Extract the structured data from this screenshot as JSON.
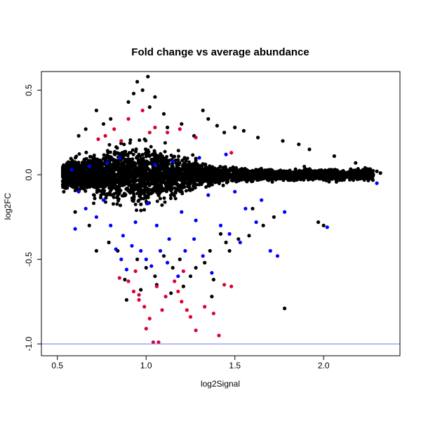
{
  "chart_data": {
    "type": "scatter",
    "title": "Fold change vs average abundance",
    "xlabel": "log2Signal",
    "ylabel": "log2FC",
    "xlim": [
      0.41,
      2.43
    ],
    "ylim": [
      -1.07,
      0.61
    ],
    "x_ticks": [
      "0.5",
      "1.0",
      "1.5",
      "2.0"
    ],
    "x_tick_values": [
      0.5,
      1.0,
      1.5,
      2.0
    ],
    "y_ticks": [
      "-1.0",
      "-0.5",
      "0.0",
      "0.5"
    ],
    "y_tick_values": [
      -1.0,
      -0.5,
      0.0,
      0.5
    ],
    "grid": false,
    "legend": "none",
    "reference_line": {
      "y": -1.0,
      "color": "#6b73ff"
    },
    "colors": {
      "background_points": "#000000",
      "significant_minor": "#0000ff",
      "significant_major": "#dd0033"
    },
    "series": [
      {
        "color": "#000000",
        "points": [
          [
            0.95,
            0.55
          ],
          [
            0.98,
            0.5
          ],
          [
            1.01,
            0.58
          ],
          [
            0.93,
            0.48
          ],
          [
            1.05,
            0.46
          ],
          [
            0.9,
            0.43
          ],
          [
            1.02,
            0.4
          ],
          [
            1.1,
            0.36
          ],
          [
            0.72,
            0.38
          ],
          [
            0.8,
            0.33
          ],
          [
            1.32,
            0.38
          ],
          [
            1.35,
            0.33
          ],
          [
            1.2,
            0.3
          ],
          [
            1.4,
            0.29
          ],
          [
            1.5,
            0.28
          ],
          [
            1.55,
            0.26
          ],
          [
            0.62,
            0.23
          ],
          [
            0.66,
            0.27
          ],
          [
            1.27,
            0.23
          ],
          [
            1.44,
            0.25
          ],
          [
            1.63,
            0.22
          ],
          [
            1.77,
            0.2
          ],
          [
            1.86,
            0.18
          ],
          [
            1.92,
            0.15
          ],
          [
            2.06,
            0.11
          ],
          [
            2.18,
            0.07
          ],
          [
            2.3,
            0.02
          ],
          [
            2.32,
            0.01
          ],
          [
            1.12,
            0.28
          ],
          [
            0.76,
            0.3
          ],
          [
            1.6,
            -0.2
          ],
          [
            1.72,
            -0.25
          ],
          [
            1.66,
            -0.3
          ],
          [
            2.0,
            -0.3
          ],
          [
            1.97,
            -0.28
          ],
          [
            1.58,
            -0.36
          ],
          [
            1.45,
            -0.4
          ],
          [
            1.36,
            -0.45
          ],
          [
            1.28,
            -0.55
          ],
          [
            1.25,
            -0.6
          ],
          [
            1.21,
            -0.66
          ],
          [
            1.15,
            -0.55
          ],
          [
            1.05,
            -0.6
          ],
          [
            1.0,
            -0.55
          ],
          [
            0.97,
            -0.68
          ],
          [
            0.89,
            -0.74
          ],
          [
            0.88,
            -0.62
          ],
          [
            0.84,
            -0.45
          ],
          [
            0.79,
            -0.4
          ],
          [
            0.72,
            -0.45
          ],
          [
            0.68,
            -0.3
          ],
          [
            0.6,
            -0.22
          ],
          [
            0.95,
            -0.5
          ],
          [
            1.1,
            -0.48
          ],
          [
            1.33,
            -0.52
          ],
          [
            1.38,
            -0.62
          ],
          [
            1.47,
            -0.45
          ],
          [
            1.37,
            -0.72
          ],
          [
            1.14,
            -0.7
          ],
          [
            1.78,
            -0.79
          ],
          [
            1.06,
            -0.65
          ],
          [
            1.19,
            -0.5
          ],
          [
            1.52,
            -0.38
          ],
          [
            1.42,
            -0.35
          ]
        ]
      },
      {
        "color": "#0000ff",
        "points": [
          [
            0.78,
            0.07
          ],
          [
            0.85,
            0.1
          ],
          [
            1.05,
            0.06
          ],
          [
            1.3,
            0.1
          ],
          [
            1.45,
            0.12
          ],
          [
            0.68,
            0.05
          ],
          [
            0.58,
            0.03
          ],
          [
            1.15,
            0.08
          ],
          [
            0.62,
            -0.1
          ],
          [
            0.66,
            -0.2
          ],
          [
            0.6,
            -0.32
          ],
          [
            0.72,
            -0.25
          ],
          [
            0.8,
            -0.3
          ],
          [
            0.83,
            -0.44
          ],
          [
            0.86,
            -0.5
          ],
          [
            0.89,
            -0.56
          ],
          [
            0.92,
            -0.42
          ],
          [
            0.97,
            -0.45
          ],
          [
            1.0,
            -0.5
          ],
          [
            1.03,
            -0.54
          ],
          [
            1.08,
            -0.45
          ],
          [
            1.12,
            -0.52
          ],
          [
            1.18,
            -0.6
          ],
          [
            1.22,
            -0.45
          ],
          [
            1.27,
            -0.38
          ],
          [
            1.32,
            -0.48
          ],
          [
            1.37,
            -0.58
          ],
          [
            1.42,
            -0.3
          ],
          [
            1.47,
            -0.35
          ],
          [
            1.53,
            -0.4
          ],
          [
            1.62,
            -0.28
          ],
          [
            1.7,
            -0.45
          ],
          [
            1.74,
            -0.48
          ],
          [
            1.78,
            -0.22
          ],
          [
            2.02,
            -0.31
          ],
          [
            2.3,
            -0.05
          ],
          [
            0.94,
            -0.28
          ],
          [
            1.06,
            -0.3
          ],
          [
            1.2,
            -0.22
          ],
          [
            1.56,
            -0.2
          ],
          [
            0.76,
            -0.15
          ],
          [
            1.01,
            -0.17
          ],
          [
            1.35,
            -0.12
          ],
          [
            1.65,
            -0.15
          ],
          [
            0.87,
            -0.36
          ],
          [
            1.13,
            -0.38
          ],
          [
            1.28,
            -0.27
          ],
          [
            1.5,
            -0.1
          ]
        ]
      },
      {
        "color": "#dd0033",
        "points": [
          [
            0.98,
            0.38
          ],
          [
            0.9,
            0.33
          ],
          [
            0.82,
            0.27
          ],
          [
            0.77,
            0.23
          ],
          [
            1.05,
            0.28
          ],
          [
            1.12,
            0.25
          ],
          [
            1.28,
            0.22
          ],
          [
            0.86,
            0.2
          ],
          [
            0.73,
            0.21
          ],
          [
            1.19,
            0.27
          ],
          [
            1.02,
            0.25
          ],
          [
            1.48,
            0.13
          ],
          [
            0.85,
            -0.61
          ],
          [
            0.9,
            -0.63
          ],
          [
            0.93,
            -0.69
          ],
          [
            0.96,
            -0.74
          ],
          [
            0.99,
            -0.78
          ],
          [
            1.02,
            -0.85
          ],
          [
            1.0,
            -0.91
          ],
          [
            1.04,
            -0.99
          ],
          [
            1.07,
            -0.99
          ],
          [
            1.09,
            -0.8
          ],
          [
            1.11,
            -0.72
          ],
          [
            1.16,
            -0.63
          ],
          [
            1.18,
            -0.69
          ],
          [
            1.2,
            -0.75
          ],
          [
            1.23,
            -0.8
          ],
          [
            1.25,
            -0.84
          ],
          [
            1.28,
            -0.92
          ],
          [
            1.33,
            -0.78
          ],
          [
            1.38,
            -0.82
          ],
          [
            1.41,
            -0.95
          ],
          [
            1.44,
            -0.65
          ],
          [
            1.48,
            -0.66
          ],
          [
            0.94,
            -0.57
          ],
          [
            1.21,
            -0.57
          ],
          [
            0.96,
            -0.71
          ],
          [
            1.06,
            -0.66
          ]
        ]
      }
    ]
  }
}
